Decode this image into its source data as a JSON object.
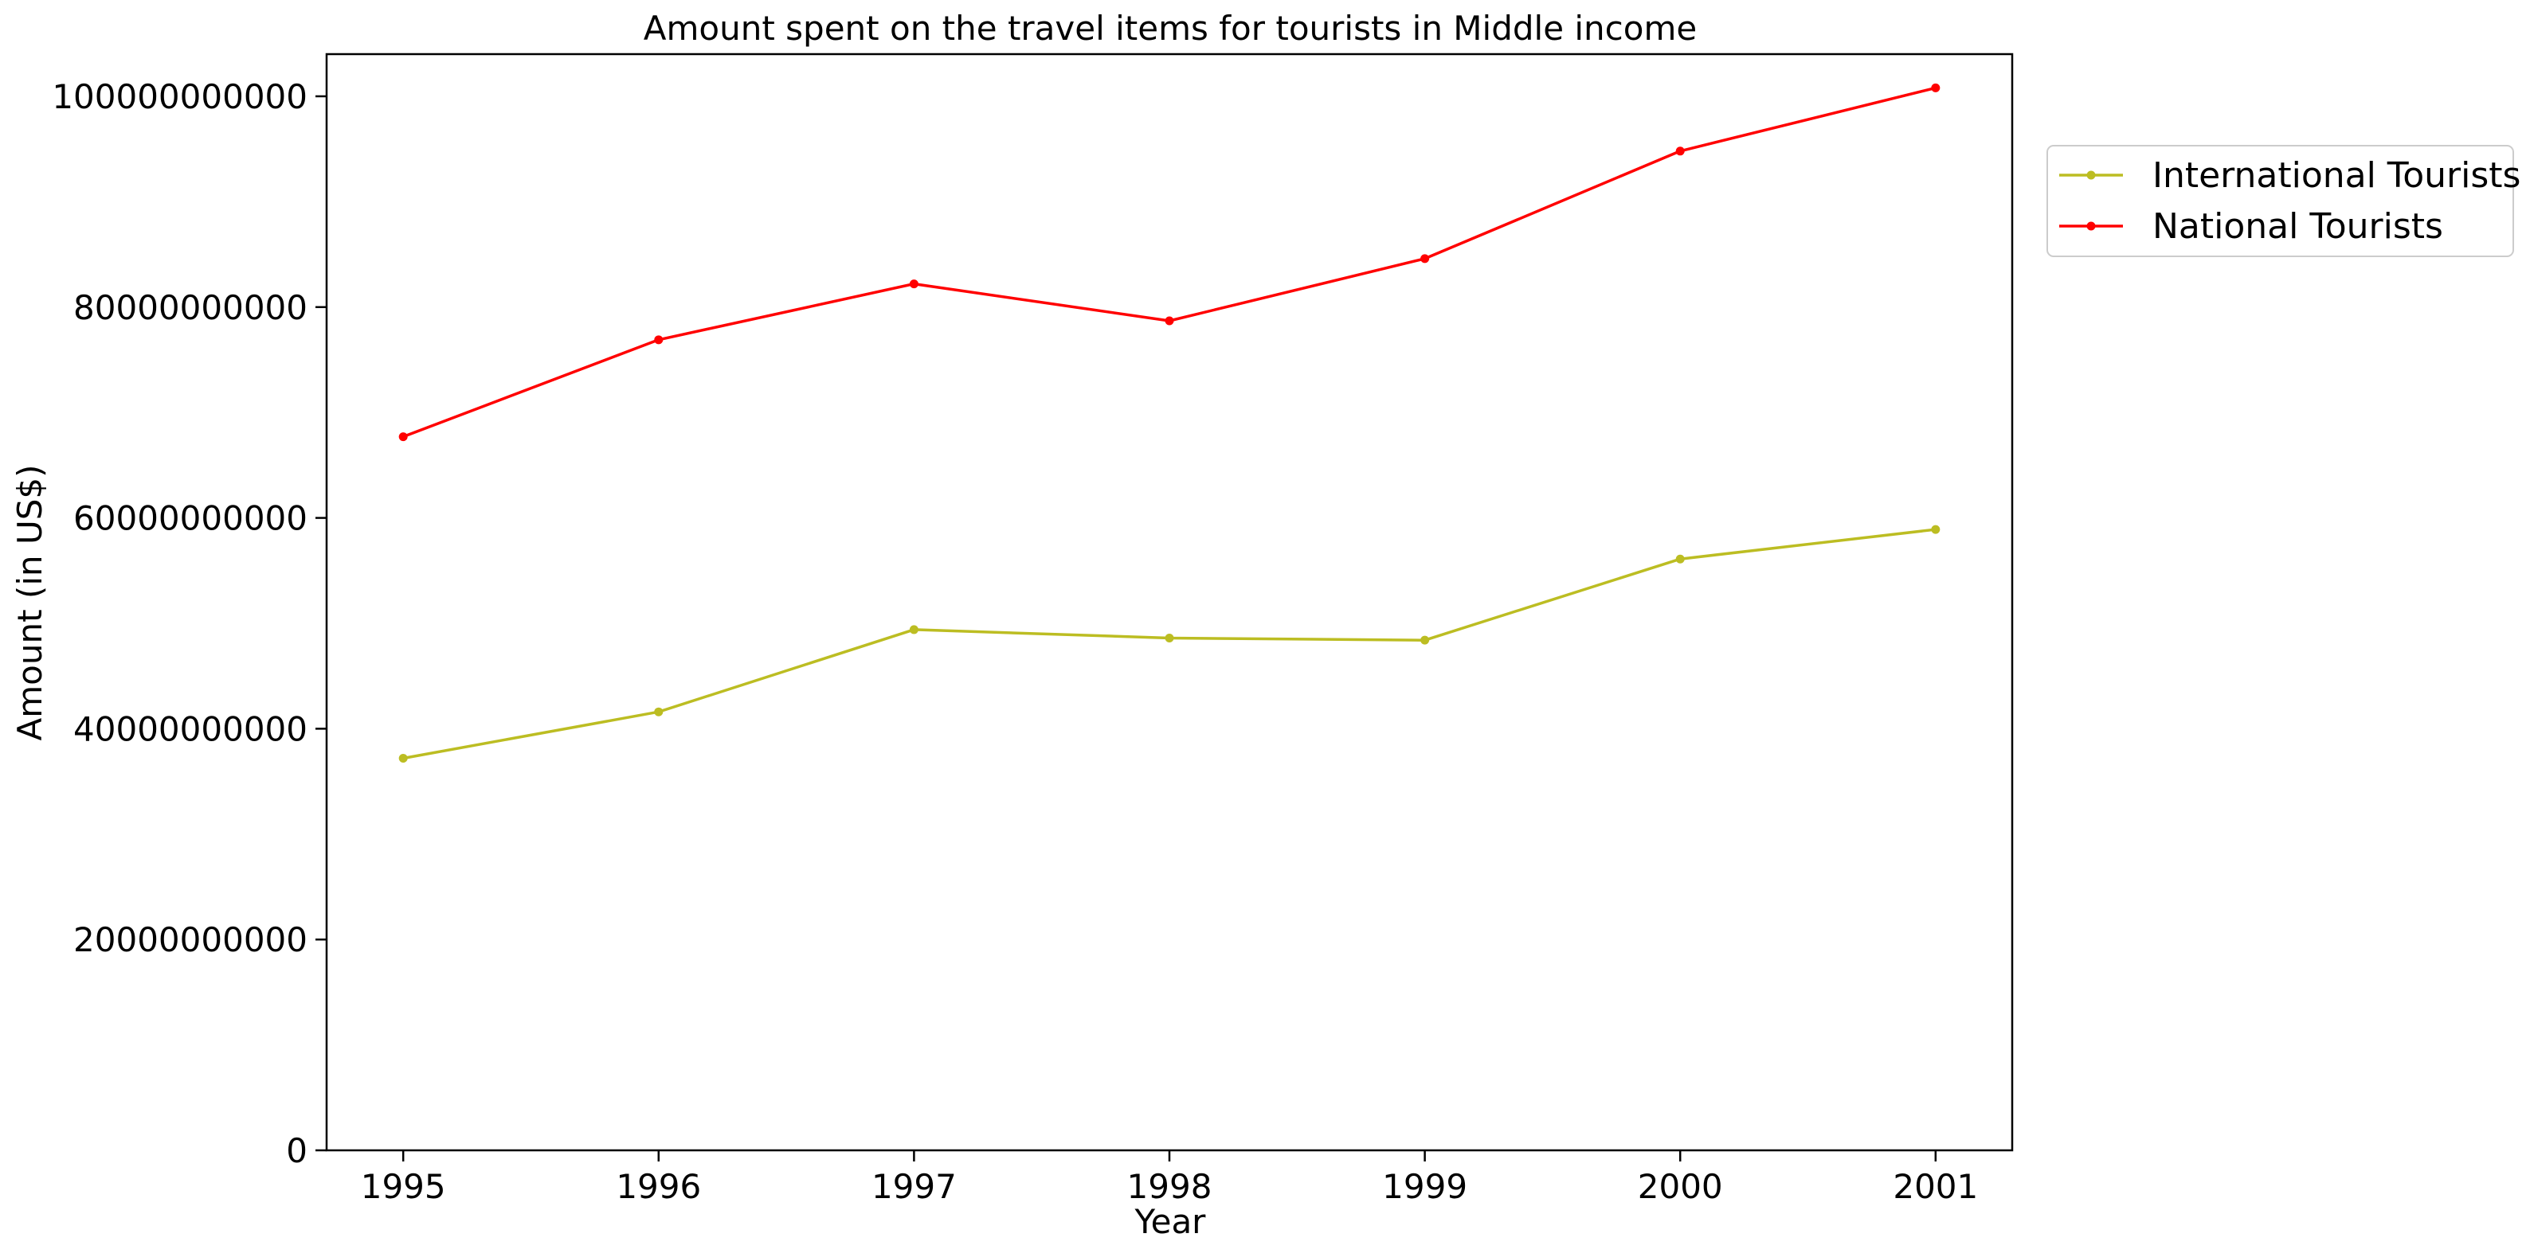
{
  "chart_data": {
    "type": "line",
    "title": "Amount spent on the travel items for tourists in Middle income",
    "xlabel": "Year",
    "ylabel": "Amount (in US$)",
    "x": [
      1995,
      1996,
      1997,
      1998,
      1999,
      2000,
      2001
    ],
    "x_tick_labels": [
      "1995",
      "1996",
      "1997",
      "1998",
      "1999",
      "2000",
      "2001"
    ],
    "ylim": [
      0,
      104000000000
    ],
    "y_ticks": [
      0,
      20000000000,
      40000000000,
      60000000000,
      80000000000,
      100000000000
    ],
    "y_tick_labels": [
      "0",
      "20000000000",
      "40000000000",
      "60000000000",
      "80000000000",
      "100000000000"
    ],
    "grid": false,
    "legend_position": "outside-top-right",
    "series": [
      {
        "name": "International Tourists",
        "color": "#bcbd22",
        "marker": "circle",
        "values": [
          37200000000,
          41600000000,
          49400000000,
          48600000000,
          48400000000,
          56100000000,
          58900000000
        ]
      },
      {
        "name": "National Tourists",
        "color": "#ff0000",
        "marker": "circle",
        "values": [
          67700000000,
          76900000000,
          82200000000,
          78700000000,
          84600000000,
          94800000000,
          100800000000
        ]
      }
    ]
  }
}
